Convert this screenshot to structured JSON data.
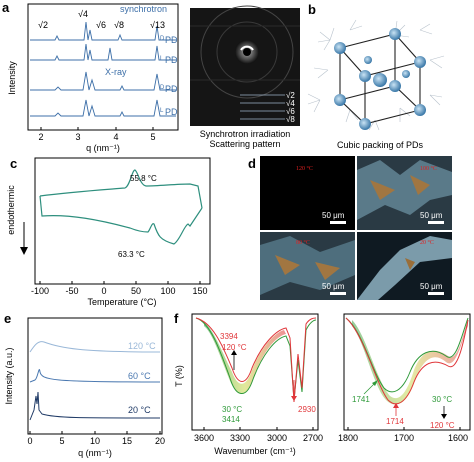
{
  "a": {
    "label": "a",
    "ylabel": "Intensity",
    "xlabel": "q (nm⁻¹)",
    "xticks": [
      "2",
      "3",
      "4",
      "5"
    ],
    "series": [
      "synchrotron",
      "DPD",
      "LPD",
      "X-ray",
      "DPD",
      "LPD"
    ],
    "series_label_synchrotron": "synchrotron",
    "series_label_xray": "X-ray",
    "dpd_sup": "D",
    "lpd_sup": "L",
    "pd_text": "PD",
    "peaks": [
      "√2",
      "√4",
      "√6",
      "√8",
      "√13"
    ],
    "pattern_caption_1": "Synchrotron irradiation",
    "pattern_caption_2": "Scattering pattern",
    "pattern_marks": [
      "√2",
      "√4",
      "√6",
      "√8"
    ]
  },
  "b": {
    "label": "b",
    "caption": "Cubic packing of PDs"
  },
  "c": {
    "label": "c",
    "ylabel": "endothermic",
    "xlabel": "Temperature (°C)",
    "xticks": [
      "-100",
      "-50",
      "0",
      "50",
      "100",
      "150"
    ],
    "annot_top": "55.8 °C",
    "annot_bottom": "63.3 °C"
  },
  "d": {
    "label": "d",
    "temps": [
      "120 °C",
      "100 °C",
      "80 °C",
      "20 °C"
    ],
    "scalebar": "50 μm"
  },
  "e": {
    "label": "e",
    "ylabel": "Intensity (a.u.)",
    "xlabel": "q (nm⁻¹)",
    "xticks": [
      "0",
      "5",
      "10",
      "15",
      "20"
    ],
    "temps": [
      "120 °C",
      "60 °C",
      "20 °C"
    ]
  },
  "f": {
    "label": "f",
    "ylabel": "T (%)",
    "xlabel": "Wavenumber (cm⁻¹)",
    "left_xticks": [
      "3600",
      "3300",
      "3000",
      "2700"
    ],
    "right_xticks": [
      "1800",
      "1700",
      "1600"
    ],
    "annots": {
      "v3394": "3394",
      "t120a": "120 °C",
      "t30a": "30 °C",
      "v3414": "3414",
      "v2930": "2930",
      "v1741": "1741",
      "v1714": "1714",
      "t30b": "30 °C",
      "t120b": "120 °C"
    }
  }
}
